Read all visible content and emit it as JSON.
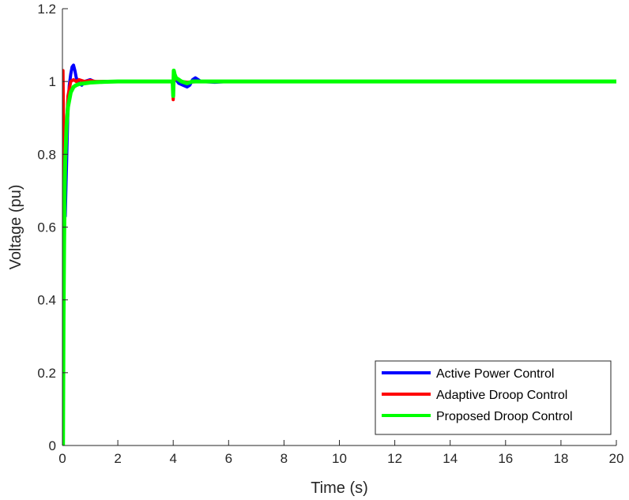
{
  "chart_data": {
    "type": "line",
    "title": "",
    "xlabel": "Time (s)",
    "ylabel": "Voltage (pu)",
    "xlim": [
      0,
      20
    ],
    "ylim": [
      0,
      1.2
    ],
    "xticks": [
      0,
      2,
      4,
      6,
      8,
      10,
      12,
      14,
      16,
      18,
      20
    ],
    "yticks": [
      0,
      0.2,
      0.4,
      0.6,
      0.8,
      1,
      1.2
    ],
    "xtick_labels": [
      "0",
      "2",
      "4",
      "6",
      "8",
      "10",
      "12",
      "14",
      "16",
      "18",
      "20"
    ],
    "ytick_labels": [
      "0",
      "0.2",
      "0.4",
      "0.6",
      "0.8",
      "1",
      "1.2"
    ],
    "grid": false,
    "legend_position": "bottom-right",
    "series": [
      {
        "name": "Active Power Control",
        "color": "#0000ff",
        "x": [
          0,
          0.02,
          0.05,
          0.1,
          0.15,
          0.2,
          0.25,
          0.3,
          0.35,
          0.4,
          0.45,
          0.5,
          0.6,
          0.7,
          0.8,
          1.0,
          1.2,
          1.5,
          2,
          3,
          3.98,
          4.0,
          4.02,
          4.1,
          4.2,
          4.35,
          4.5,
          4.6,
          4.7,
          4.8,
          5,
          5.5,
          6,
          8,
          10,
          15,
          20
        ],
        "y": [
          0,
          0.95,
          0.82,
          0.63,
          0.78,
          0.93,
          0.99,
          1.02,
          1.04,
          1.045,
          1.03,
          1.01,
          0.995,
          0.99,
          1.0,
          1.005,
          0.998,
          1.0,
          1.0,
          1.0,
          1.0,
          0.96,
          1.02,
          1.005,
          0.995,
          0.99,
          0.985,
          0.99,
          1.005,
          1.01,
          1.0,
          0.998,
          1.0,
          1.0,
          1.0,
          1.0,
          1.0
        ]
      },
      {
        "name": "Adaptive Droop Control",
        "color": "#ff0000",
        "x": [
          0,
          0.02,
          0.05,
          0.08,
          0.1,
          0.15,
          0.2,
          0.3,
          0.4,
          0.5,
          0.6,
          0.8,
          1.0,
          1.2,
          1.5,
          2,
          3,
          3.98,
          4.0,
          4.02,
          4.1,
          4.3,
          4.5,
          5,
          6,
          8,
          10,
          15,
          20
        ],
        "y": [
          0,
          1.03,
          0.8,
          0.68,
          0.75,
          0.88,
          0.96,
          1.0,
          1.005,
          1.0,
          1.005,
          1.0,
          1.003,
          1.0,
          1.0,
          1.0,
          1.0,
          1.0,
          0.95,
          1.0,
          1.01,
          1.0,
          0.998,
          1.0,
          1.0,
          1.0,
          1.0,
          1.0,
          1.0
        ]
      },
      {
        "name": "Proposed Droop Control",
        "color": "#00ff00",
        "x": [
          0,
          0.02,
          0.04,
          0.06,
          0.08,
          0.1,
          0.15,
          0.2,
          0.3,
          0.4,
          0.5,
          0.6,
          0.8,
          1.0,
          1.2,
          1.5,
          2,
          3,
          3.98,
          4.0,
          4.02,
          4.05,
          4.1,
          4.2,
          4.3,
          4.5,
          4.7,
          5,
          6,
          8,
          10,
          15,
          20
        ],
        "y": [
          0,
          0.0,
          0.35,
          0.55,
          0.7,
          0.78,
          0.88,
          0.93,
          0.97,
          0.985,
          0.99,
          0.993,
          0.995,
          0.997,
          0.998,
          0.999,
          1.0,
          1.0,
          1.0,
          0.96,
          1.03,
          1.02,
          1.01,
          1.005,
          1.0,
          0.995,
          1.0,
          1.0,
          1.0,
          1.0,
          1.0,
          1.0,
          1.0
        ]
      }
    ]
  }
}
